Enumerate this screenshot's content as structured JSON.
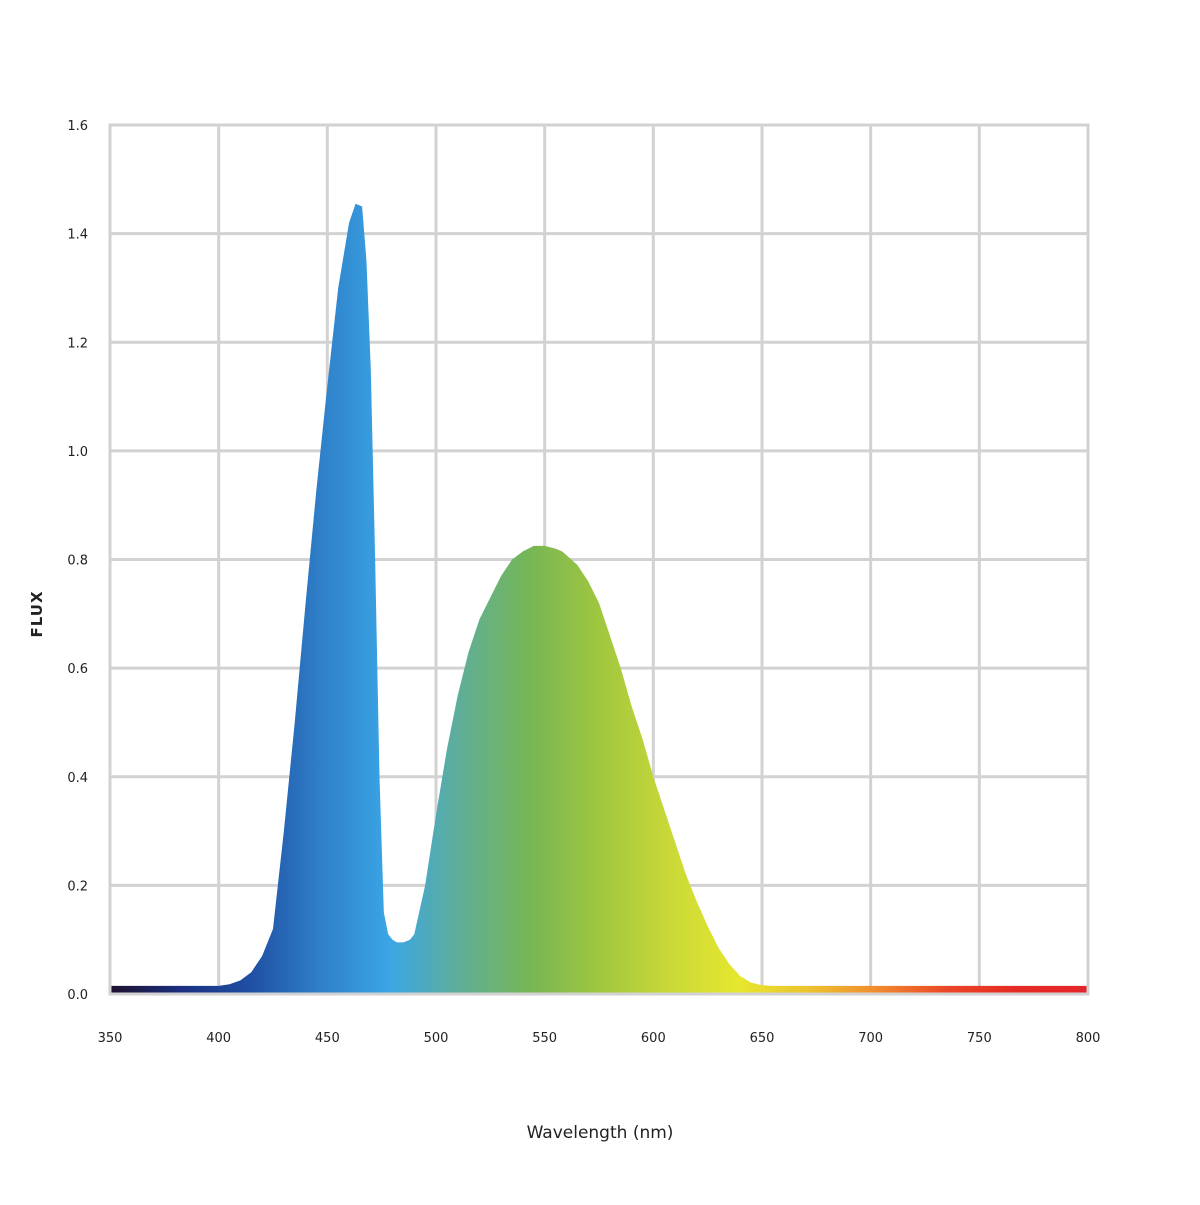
{
  "chart_data": {
    "type": "area",
    "xlabel": "Wavelength (nm)",
    "ylabel": "FLUX",
    "xlim": [
      350,
      800
    ],
    "ylim": [
      0.0,
      1.6
    ],
    "x_ticks": [
      350,
      400,
      450,
      500,
      550,
      600,
      650,
      700,
      750,
      800
    ],
    "x_tick_labels": [
      "350",
      "400",
      "450",
      "500",
      "550",
      "600",
      "650",
      "700",
      "750",
      "800"
    ],
    "y_ticks": [
      0.0,
      0.2,
      0.4,
      0.6,
      0.8,
      1.0,
      1.2,
      1.4,
      1.6
    ],
    "y_tick_labels": [
      "0.0",
      "0.2",
      "0.4",
      "0.6",
      "0.8",
      "1.0",
      "1.2",
      "1.4",
      "1.6"
    ],
    "grid": true,
    "fill": "visible-spectrum gradient",
    "series": [
      {
        "x": [
          350,
          400,
          405,
          410,
          415,
          420,
          425,
          430,
          435,
          440,
          445,
          450,
          455,
          460,
          463,
          466,
          468,
          470,
          472,
          474,
          476,
          478,
          480,
          482,
          485,
          488,
          490,
          495,
          500,
          505,
          510,
          515,
          520,
          525,
          530,
          535,
          540,
          545,
          550,
          555,
          558,
          560,
          565,
          570,
          575,
          580,
          585,
          590,
          595,
          600,
          605,
          610,
          615,
          620,
          625,
          630,
          635,
          640,
          645,
          650,
          655,
          660,
          665,
          670,
          700,
          750,
          800
        ],
        "y": [
          0.015,
          0.015,
          0.018,
          0.025,
          0.04,
          0.07,
          0.12,
          0.3,
          0.5,
          0.72,
          0.93,
          1.12,
          1.3,
          1.42,
          1.455,
          1.45,
          1.35,
          1.15,
          0.8,
          0.4,
          0.15,
          0.11,
          0.1,
          0.095,
          0.095,
          0.1,
          0.11,
          0.2,
          0.33,
          0.45,
          0.55,
          0.63,
          0.69,
          0.73,
          0.77,
          0.8,
          0.815,
          0.825,
          0.825,
          0.82,
          0.815,
          0.808,
          0.79,
          0.76,
          0.72,
          0.66,
          0.6,
          0.53,
          0.47,
          0.4,
          0.34,
          0.28,
          0.22,
          0.17,
          0.125,
          0.085,
          0.055,
          0.033,
          0.021,
          0.016,
          0.015,
          0.015,
          0.015,
          0.015,
          0.015,
          0.015,
          0.015
        ]
      }
    ]
  },
  "colors": {
    "grid": "#d2d2d2",
    "spectrum_stops": [
      "#1e0f2c",
      "#1c2f80",
      "#1f4fa3",
      "#2f7fc8",
      "#3aa6e6",
      "#5fae98",
      "#76b655",
      "#9fc63f",
      "#c9d838",
      "#e6e72f",
      "#ecc230",
      "#f18a2e",
      "#ea4526",
      "#e42a24",
      "#e3262b"
    ]
  }
}
